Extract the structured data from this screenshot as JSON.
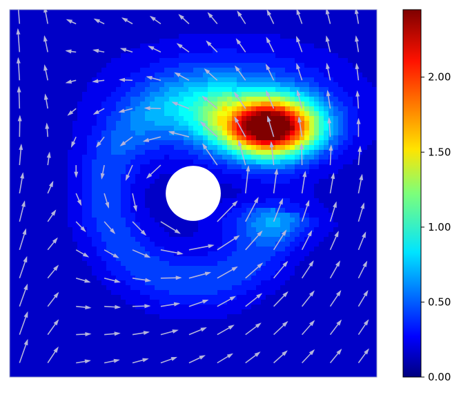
{
  "chart_data": {
    "type": "heatmap",
    "title": "",
    "xlabel": "",
    "ylabel": "",
    "colormap": "jet",
    "colorbar": {
      "range": [
        0.0,
        2.45
      ],
      "ticks": [
        0.0,
        0.5,
        1.0,
        1.5,
        2.0
      ],
      "tick_labels": [
        "0.00",
        "0.50",
        "1.00",
        "1.50",
        "2.00"
      ]
    },
    "axes_ticks_visible": false,
    "grid": false,
    "field": {
      "domain": {
        "x": [
          0,
          1
        ],
        "y": [
          0,
          1
        ]
      },
      "obstacle": {
        "type": "circle",
        "center": [
          0.5,
          0.5
        ],
        "radius": 0.075,
        "color": "#ffffff"
      },
      "peak": {
        "x": 0.71,
        "y": 0.68,
        "value": 2.45
      },
      "background_value": 0.05
    },
    "quiver": {
      "color": "#b4b4dc",
      "grid": [
        13,
        13
      ]
    }
  }
}
